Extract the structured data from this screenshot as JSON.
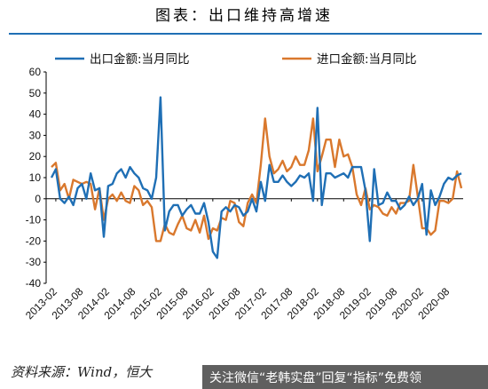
{
  "title": "图表：出口维持高增速",
  "source": "资料来源：Wind，恒大",
  "watermark": "关注微信“老韩实盘”回复“指标”免费领",
  "colors": {
    "export": "#1F6FB5",
    "import": "#D9782D",
    "title_line": "#1F6FB5"
  },
  "chart_data": {
    "type": "line",
    "yticks": [
      "60",
      "50",
      "40",
      "30",
      "20",
      "10",
      "0",
      "-10",
      "-20",
      "-30",
      "-40"
    ],
    "ylim": [
      -40,
      60
    ],
    "xticks": [
      "2013-02",
      "2013-08",
      "2014-02",
      "2014-08",
      "2015-02",
      "2015-08",
      "2016-02",
      "2016-08",
      "2017-02",
      "2017-08",
      "2018-02",
      "2018-08",
      "2019-02",
      "2019-08",
      "2020-02",
      "2020-08"
    ],
    "x_start": "2013-01",
    "legend_position": "top",
    "series": [
      {
        "name": "出口金额:当月同比",
        "color": "#1F6FB5",
        "values": [
          10,
          14,
          0,
          -2,
          1,
          -3,
          5,
          7,
          0,
          12,
          4,
          5,
          -18,
          6,
          7,
          12,
          14,
          10,
          15,
          12,
          10,
          5,
          4,
          0,
          10,
          48,
          -15,
          -6,
          -3,
          -3,
          -8,
          -5,
          -3,
          -7,
          -7,
          -2,
          -11,
          -25,
          -28,
          -6,
          -4,
          -6,
          -3,
          -4,
          -8,
          -6,
          0,
          -6,
          8,
          -1,
          16,
          8,
          8,
          11,
          8,
          6,
          8,
          11,
          10,
          12,
          -1,
          43,
          -3,
          12,
          12,
          10,
          11,
          12,
          10,
          15,
          15,
          15,
          4,
          -20,
          14,
          -3,
          -2,
          3,
          -1,
          -1,
          -5,
          -3,
          1,
          -3,
          0,
          7,
          -17,
          4,
          -3,
          1,
          7,
          10,
          9,
          11,
          12
        ]
      },
      {
        "name": "进口金额:当月同比",
        "color": "#D9782D",
        "values": [
          15,
          17,
          4,
          7,
          0,
          9,
          8,
          7,
          8,
          7,
          -5,
          5,
          -10,
          0,
          2,
          -1,
          3,
          -1,
          -2,
          6,
          4,
          -3,
          -1,
          -4,
          -20,
          -20,
          -12,
          -16,
          -17,
          -12,
          -8,
          -14,
          -15,
          -10,
          -16,
          -8,
          -19,
          -14,
          -15,
          -9,
          -10,
          -1,
          -2,
          -11,
          -13,
          -2,
          2,
          -2,
          16,
          38,
          20,
          12,
          14,
          18,
          13,
          15,
          20,
          16,
          16,
          23,
          38,
          13,
          20,
          28,
          28,
          15,
          28,
          20,
          21,
          15,
          2,
          -3,
          5,
          -5,
          -3,
          -4,
          -7,
          -8,
          -4,
          -7,
          -2,
          -2,
          -1,
          16,
          1,
          -14,
          -14,
          -17,
          -15,
          -1,
          -1,
          -2,
          0,
          13,
          5
        ]
      }
    ]
  }
}
